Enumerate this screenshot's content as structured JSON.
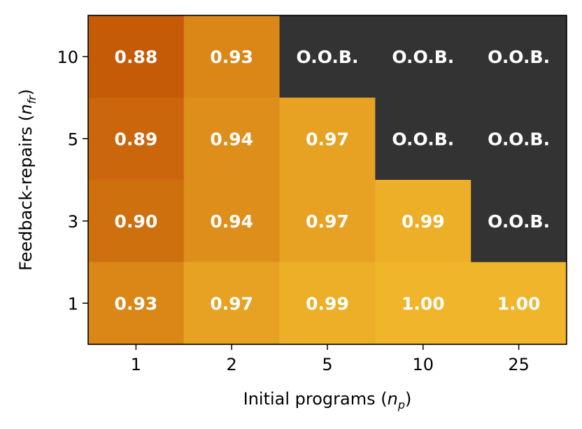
{
  "chart_data": {
    "type": "heatmap",
    "title": "",
    "xlabel": {
      "main": "Initial programs (",
      "var": "n",
      "sub": "p",
      "close": ")"
    },
    "ylabel": {
      "main": "Feedback-repairs (",
      "var": "n",
      "sub": "fr",
      "close": ")"
    },
    "x_categories": [
      "1",
      "2",
      "5",
      "10",
      "25"
    ],
    "y_categories": [
      "10",
      "5",
      "3",
      "1"
    ],
    "oob_label": "O.O.B.",
    "values": [
      [
        0.88,
        0.93,
        null,
        null,
        null
      ],
      [
        0.89,
        0.94,
        0.97,
        null,
        null
      ],
      [
        0.9,
        0.94,
        0.97,
        0.99,
        null
      ],
      [
        0.93,
        0.97,
        0.99,
        1.0,
        1.0
      ]
    ],
    "display": [
      [
        "0.88",
        "0.93",
        "O.O.B.",
        "O.O.B.",
        "O.O.B."
      ],
      [
        "0.89",
        "0.94",
        "0.97",
        "O.O.B.",
        "O.O.B."
      ],
      [
        "0.90",
        "0.94",
        "0.97",
        "0.99",
        "O.O.B."
      ],
      [
        "0.93",
        "0.97",
        "0.99",
        "1.00",
        "1.00"
      ]
    ],
    "colormap": {
      "low": "#c55a07",
      "high": "#f0b52a",
      "oob": "#333333"
    },
    "grid": false,
    "legend": "none"
  }
}
